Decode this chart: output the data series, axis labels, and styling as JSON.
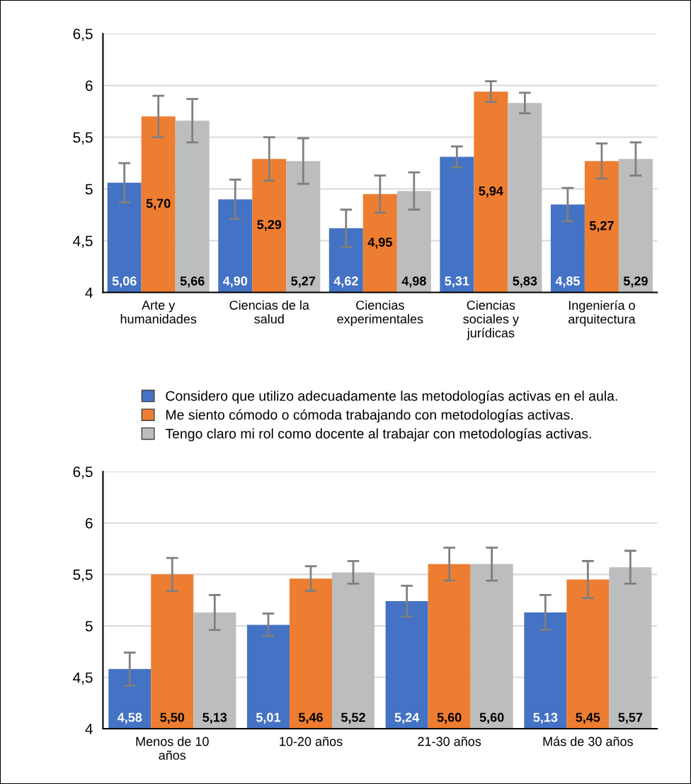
{
  "chart_data": [
    {
      "type": "bar",
      "categories": [
        "Arte y\nhumanidades",
        "Ciencias de la\nsalud",
        "Ciencias\nexperimentales",
        "Ciencias\nsociales y\njurídicas",
        "Ingeniería o\narquitectura"
      ],
      "series": [
        {
          "name": "Considero que utilizo adecuadamente las metodologías activas en el aula.",
          "color": "#4472c4",
          "values": [
            5.06,
            4.9,
            4.62,
            5.31,
            4.85
          ],
          "errors": [
            0.19,
            0.19,
            0.18,
            0.1,
            0.16
          ]
        },
        {
          "name": "Me siento cómodo o cómoda trabajando con metodologías activas.",
          "color": "#ed7d31",
          "values": [
            5.7,
            5.29,
            4.95,
            5.94,
            5.27
          ],
          "errors": [
            0.2,
            0.21,
            0.18,
            0.1,
            0.17
          ]
        },
        {
          "name": "Tengo claro mi rol como docente al trabajar con metodologías activas.",
          "color": "#bcbdbe",
          "values": [
            5.66,
            5.27,
            4.98,
            5.83,
            5.29
          ],
          "errors": [
            0.21,
            0.22,
            0.18,
            0.1,
            0.16
          ]
        }
      ],
      "ylim": [
        4,
        6.5
      ],
      "yticks": [
        4,
        {
          "value": 4.5,
          "label": "4,5"
        },
        5,
        {
          "value": 5.5,
          "label": "5,5"
        },
        6,
        {
          "value": 6.5,
          "label": "6,5"
        }
      ],
      "grid": "y",
      "legend": "bottom",
      "value_labels": [
        [
          "5,06",
          "4,90",
          "4,62",
          "5,31",
          "4,85"
        ],
        [
          "5,70",
          "5,29",
          "4,95",
          "5,94",
          "5,27"
        ],
        [
          "5,66",
          "5,27",
          "4,98",
          "5,83",
          "5,29"
        ]
      ]
    },
    {
      "type": "bar",
      "categories": [
        "Menos de 10\naños",
        "10-20 años",
        "21-30 años",
        "Más de 30 años"
      ],
      "series": [
        {
          "color": "#4472c4",
          "values": [
            4.58,
            5.01,
            5.24,
            5.13
          ],
          "errors": [
            0.16,
            0.11,
            0.15,
            0.17
          ]
        },
        {
          "color": "#ed7d31",
          "values": [
            5.5,
            5.46,
            5.6,
            5.45
          ],
          "errors": [
            0.16,
            0.12,
            0.16,
            0.18
          ]
        },
        {
          "color": "#bcbdbe",
          "values": [
            5.13,
            5.52,
            5.6,
            5.57
          ],
          "errors": [
            0.17,
            0.11,
            0.16,
            0.16
          ]
        }
      ],
      "ylim": [
        4,
        6.5
      ],
      "yticks": [
        4,
        {
          "value": 4.5,
          "label": "4,5"
        },
        5,
        {
          "value": 5.5,
          "label": "5,5"
        },
        6,
        {
          "value": 6.5,
          "label": "6,5"
        }
      ],
      "grid": "y",
      "value_labels": [
        [
          "4,58",
          "5,01",
          "5,24",
          "5,13"
        ],
        [
          "5,50",
          "5,46",
          "5,60",
          "5,45"
        ],
        [
          "5,13",
          "5,52",
          "5,60",
          "5,57"
        ]
      ]
    }
  ]
}
